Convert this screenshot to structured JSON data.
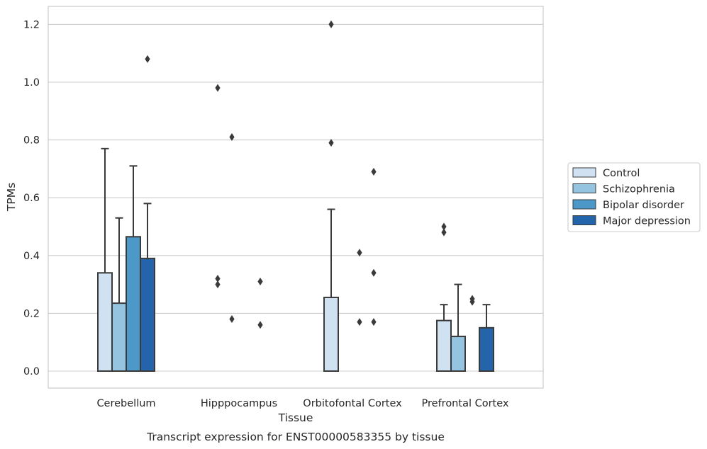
{
  "chart_data": {
    "type": "bar",
    "title": "",
    "caption": "Transcript expression for ENST00000583355 by tissue",
    "xlabel": "Tissue",
    "ylabel": "TPMs",
    "ylim": [
      -0.06,
      1.26
    ],
    "yticks": [
      0.0,
      0.2,
      0.4,
      0.6,
      0.8,
      1.0,
      1.2
    ],
    "ytick_labels": [
      "0.0",
      "0.2",
      "0.4",
      "0.6",
      "0.8",
      "1.0",
      "1.2"
    ],
    "grid": "horizontal",
    "legend_position": "right",
    "categories": [
      "Cerebellum",
      "Hipppocampus",
      "Orbitofontal Cortex",
      "Prefrontal Cortex"
    ],
    "series": [
      {
        "name": "Control",
        "color": "#d0e1f2",
        "values": [
          0.34,
          0.0,
          0.255,
          0.175
        ],
        "error_upper": [
          0.77,
          null,
          0.56,
          0.23
        ],
        "outliers": [
          [],
          [
            0.98,
            0.32,
            0.3
          ],
          [
            1.2,
            0.79
          ],
          [
            0.5,
            0.48
          ]
        ]
      },
      {
        "name": "Schizophrenia",
        "color": "#94c4df",
        "values": [
          0.235,
          0.0,
          0.0,
          0.12
        ],
        "error_upper": [
          0.53,
          null,
          null,
          0.3
        ],
        "outliers": [
          [],
          [
            0.81,
            0.18
          ],
          [],
          []
        ]
      },
      {
        "name": "Bipolar disorder",
        "color": "#4b98c9",
        "values": [
          0.465,
          0.0,
          0.0,
          0.0
        ],
        "error_upper": [
          0.71,
          null,
          null,
          null
        ],
        "outliers": [
          [],
          [],
          [
            0.41,
            0.17
          ],
          [
            0.25,
            0.24
          ]
        ]
      },
      {
        "name": "Major depression",
        "color": "#2464ab",
        "values": [
          0.39,
          0.0,
          0.0,
          0.15
        ],
        "error_upper": [
          0.58,
          null,
          null,
          0.23
        ],
        "outliers": [
          [
            1.08
          ],
          [
            0.31,
            0.16
          ],
          [
            0.69,
            0.34,
            0.17
          ],
          []
        ]
      }
    ]
  }
}
